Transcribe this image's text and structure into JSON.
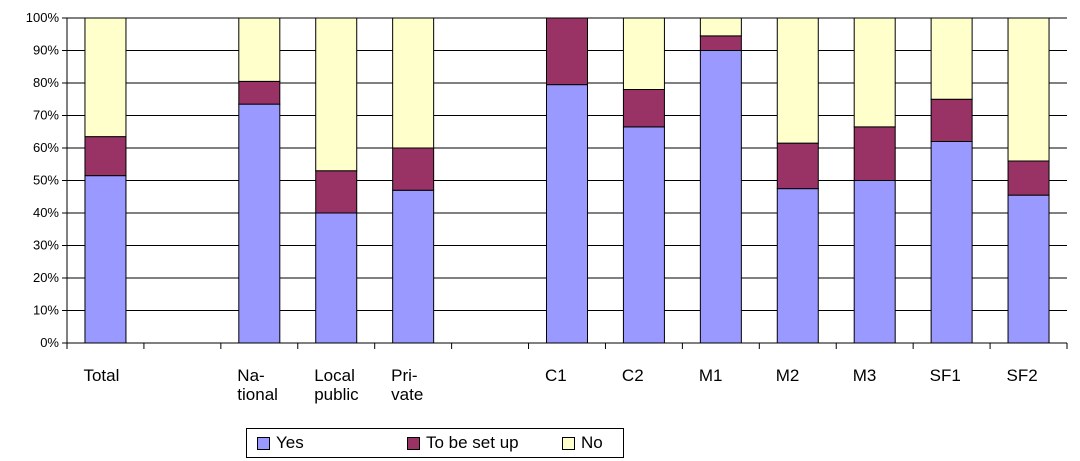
{
  "chart_data": {
    "type": "bar",
    "stacked": true,
    "categories": [
      "Total",
      "",
      "Na-\ntional",
      "Local\npublic",
      "Pri-\nvate",
      "",
      "C1",
      "C2",
      "M1",
      "M2",
      "M3",
      "SF1",
      "SF2"
    ],
    "series": [
      {
        "name": "Yes",
        "color": "#9999ff",
        "values": [
          51.5,
          null,
          73.5,
          40,
          47,
          null,
          79.5,
          66.5,
          90,
          47.5,
          50,
          62,
          45.5
        ]
      },
      {
        "name": "To be set up",
        "color": "#993366",
        "values": [
          12,
          null,
          7,
          13,
          13,
          null,
          20.5,
          11.5,
          4.5,
          14,
          16.5,
          13,
          10.5
        ]
      },
      {
        "name": "No",
        "color": "#ffffcc",
        "values": [
          36.5,
          null,
          19.5,
          47,
          40,
          null,
          0,
          22,
          5.5,
          38.5,
          33.5,
          25,
          44
        ]
      }
    ],
    "y_ticks": [
      "0%",
      "10%",
      "20%",
      "30%",
      "40%",
      "50%",
      "60%",
      "70%",
      "80%",
      "90%",
      "100%"
    ],
    "ylim": [
      0,
      100
    ],
    "grid": true,
    "legend_position": "bottom"
  }
}
